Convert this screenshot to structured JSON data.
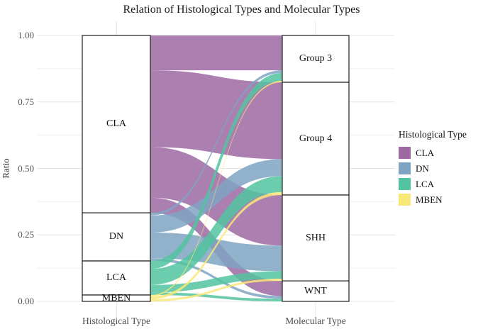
{
  "title": "Relation of Histological Types and Molecular Types",
  "y_axis": {
    "label": "Ratio",
    "ticks": [
      "1.00",
      "0.75",
      "0.50",
      "0.25",
      "0.00"
    ]
  },
  "x_axis": {
    "left_label": "Histological Type",
    "right_label": "Molecular Type"
  },
  "legend": {
    "title": "Histological Type",
    "items": [
      {
        "label": "CLA",
        "color": "#9e68a3"
      },
      {
        "label": "DN",
        "color": "#7fa3c2"
      },
      {
        "label": "LCA",
        "color": "#52c3a0"
      },
      {
        "label": "MBEN",
        "color": "#f9e877"
      }
    ]
  },
  "chart_data": {
    "type": "alluvial",
    "title": "Relation of Histological Types and Molecular Types",
    "ylabel": "Ratio",
    "ylim": [
      0,
      1
    ],
    "axes": [
      "Histological Type",
      "Molecular Type"
    ],
    "grid": {
      "major": [
        0,
        0.25,
        0.5,
        0.75,
        1.0
      ],
      "minor": [
        0.125,
        0.375,
        0.625,
        0.875
      ]
    },
    "colors": {
      "CLA": "#9e68a3",
      "DN": "#7fa3c2",
      "LCA": "#52c3a0",
      "MBEN": "#f9e877"
    },
    "left_strata": [
      {
        "name": "CLA",
        "span": [
          0.333,
          1.0
        ]
      },
      {
        "name": "DN",
        "span": [
          0.152,
          0.333
        ]
      },
      {
        "name": "LCA",
        "span": [
          0.024,
          0.152
        ]
      },
      {
        "name": "MBEN",
        "span": [
          0.0,
          0.024
        ]
      }
    ],
    "right_strata": [
      {
        "name": "Group 3",
        "span": [
          0.824,
          1.0
        ]
      },
      {
        "name": "Group 4",
        "span": [
          0.4,
          0.824
        ]
      },
      {
        "name": "SHH",
        "span": [
          0.077,
          0.4
        ]
      },
      {
        "name": "WNT",
        "span": [
          0.0,
          0.077
        ]
      }
    ],
    "flows": [
      {
        "from": "CLA",
        "to": "Group 3",
        "value": 0.131
      },
      {
        "from": "CLA",
        "to": "Group 4",
        "value": 0.289
      },
      {
        "from": "CLA",
        "to": "SHH",
        "value": 0.19
      },
      {
        "from": "CLA",
        "to": "WNT",
        "value": 0.057
      },
      {
        "from": "DN",
        "to": "Group 3",
        "value": 0.01
      },
      {
        "from": "DN",
        "to": "Group 4",
        "value": 0.064
      },
      {
        "from": "DN",
        "to": "SHH",
        "value": 0.097
      },
      {
        "from": "DN",
        "to": "WNT",
        "value": 0.01
      },
      {
        "from": "LCA",
        "to": "Group 3",
        "value": 0.03
      },
      {
        "from": "LCA",
        "to": "Group 4",
        "value": 0.06
      },
      {
        "from": "LCA",
        "to": "SHH",
        "value": 0.028
      },
      {
        "from": "LCA",
        "to": "WNT",
        "value": 0.01
      },
      {
        "from": "MBEN",
        "to": "Group 3",
        "value": 0.005
      },
      {
        "from": "MBEN",
        "to": "Group 4",
        "value": 0.011
      },
      {
        "from": "MBEN",
        "to": "SHH",
        "value": 0.008
      }
    ]
  }
}
